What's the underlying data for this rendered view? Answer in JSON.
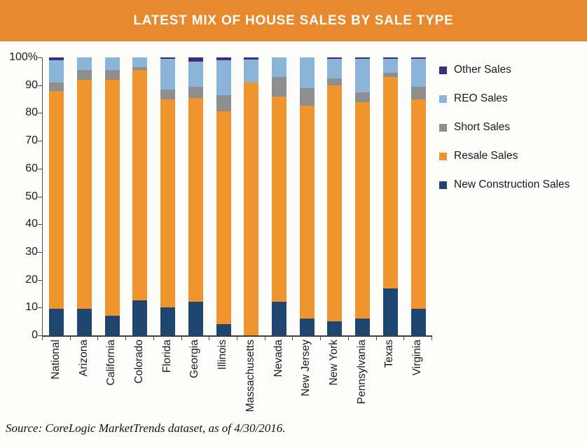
{
  "header": {
    "title": "LATEST MIX OF HOUSE SALES BY SALE TYPE",
    "bg_color": "#E8892E"
  },
  "source": {
    "text": "Source: CoreLogic MarketTrends dataset, as of 4/30/2016."
  },
  "y_axis": {
    "labels": [
      "100%",
      "90",
      "80",
      "70",
      "60",
      "50",
      "40",
      "30",
      "20",
      "10",
      "0"
    ]
  },
  "legend": [
    {
      "label": "Other Sales",
      "color": "#402B7D"
    },
    {
      "label": "REO Sales",
      "color": "#8AB4D8"
    },
    {
      "label": "Short Sales",
      "color": "#8E8E8E"
    },
    {
      "label": "Resale Sales",
      "color": "#F0942D"
    },
    {
      "label": "New Construction Sales",
      "color": "#1F4571"
    }
  ],
  "chart_data": {
    "type": "bar",
    "stacked": true,
    "title": "LATEST MIX OF HOUSE SALES BY SALE TYPE",
    "xlabel": "",
    "ylabel": "",
    "ylim": [
      0,
      100
    ],
    "grid": false,
    "legend_position": "right",
    "units": "percent",
    "categories": [
      "National",
      "Arizona",
      "California",
      "Colorado",
      "Florida",
      "Georgia",
      "Illinois",
      "Massachusetts",
      "Nevada",
      "New Jersey",
      "New York",
      "Pennsylvania",
      "Texas",
      "Virginia"
    ],
    "series": [
      {
        "name": "New Construction Sales",
        "color": "#1F4571",
        "values": [
          9.5,
          9.5,
          7,
          12.5,
          10,
          12,
          4,
          0,
          12,
          6,
          5,
          6,
          17,
          9.5
        ]
      },
      {
        "name": "Resale Sales",
        "color": "#F0942D",
        "values": [
          78.5,
          82.5,
          85,
          83,
          75,
          73.5,
          76.5,
          91,
          74,
          76.5,
          85,
          78,
          76,
          75.5
        ]
      },
      {
        "name": "Short Sales",
        "color": "#8E8E8E",
        "values": [
          3,
          3.5,
          3.5,
          1,
          3.5,
          4,
          6,
          0,
          7,
          6.5,
          2.5,
          3.5,
          1.5,
          4.5
        ]
      },
      {
        "name": "REO Sales",
        "color": "#8AB4D8",
        "values": [
          8,
          4.5,
          4.5,
          3.5,
          11,
          9,
          12.5,
          8.3,
          7,
          11,
          7,
          12,
          5,
          10
        ]
      },
      {
        "name": "Other Sales",
        "color": "#402B7D",
        "values": [
          1,
          0,
          0,
          0,
          0.5,
          1.5,
          1,
          0.7,
          0,
          0,
          0.5,
          0.5,
          0.5,
          0.5
        ]
      }
    ]
  }
}
